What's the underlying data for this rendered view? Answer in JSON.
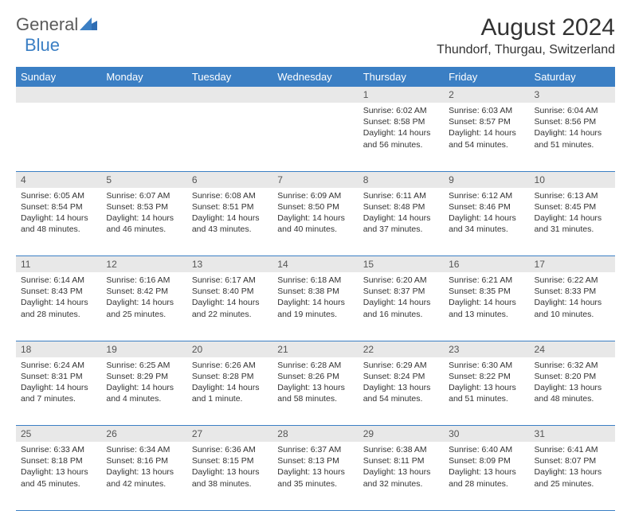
{
  "brand": {
    "general": "General",
    "blue": "Blue"
  },
  "title": "August 2024",
  "location": "Thundorf, Thurgau, Switzerland",
  "colors": {
    "header_bg": "#3b7fc4",
    "header_text": "#ffffff",
    "daynum_bg": "#e8e8e8",
    "border": "#3b7fc4",
    "text": "#333333",
    "logo_gray": "#5a5a5a",
    "logo_blue": "#3b7fc4"
  },
  "day_headers": [
    "Sunday",
    "Monday",
    "Tuesday",
    "Wednesday",
    "Thursday",
    "Friday",
    "Saturday"
  ],
  "weeks": [
    {
      "nums": [
        "",
        "",
        "",
        "",
        "1",
        "2",
        "3"
      ],
      "cells": [
        null,
        null,
        null,
        null,
        {
          "sunrise": "Sunrise: 6:02 AM",
          "sunset": "Sunset: 8:58 PM",
          "daylight": "Daylight: 14 hours and 56 minutes."
        },
        {
          "sunrise": "Sunrise: 6:03 AM",
          "sunset": "Sunset: 8:57 PM",
          "daylight": "Daylight: 14 hours and 54 minutes."
        },
        {
          "sunrise": "Sunrise: 6:04 AM",
          "sunset": "Sunset: 8:56 PM",
          "daylight": "Daylight: 14 hours and 51 minutes."
        }
      ]
    },
    {
      "nums": [
        "4",
        "5",
        "6",
        "7",
        "8",
        "9",
        "10"
      ],
      "cells": [
        {
          "sunrise": "Sunrise: 6:05 AM",
          "sunset": "Sunset: 8:54 PM",
          "daylight": "Daylight: 14 hours and 48 minutes."
        },
        {
          "sunrise": "Sunrise: 6:07 AM",
          "sunset": "Sunset: 8:53 PM",
          "daylight": "Daylight: 14 hours and 46 minutes."
        },
        {
          "sunrise": "Sunrise: 6:08 AM",
          "sunset": "Sunset: 8:51 PM",
          "daylight": "Daylight: 14 hours and 43 minutes."
        },
        {
          "sunrise": "Sunrise: 6:09 AM",
          "sunset": "Sunset: 8:50 PM",
          "daylight": "Daylight: 14 hours and 40 minutes."
        },
        {
          "sunrise": "Sunrise: 6:11 AM",
          "sunset": "Sunset: 8:48 PM",
          "daylight": "Daylight: 14 hours and 37 minutes."
        },
        {
          "sunrise": "Sunrise: 6:12 AM",
          "sunset": "Sunset: 8:46 PM",
          "daylight": "Daylight: 14 hours and 34 minutes."
        },
        {
          "sunrise": "Sunrise: 6:13 AM",
          "sunset": "Sunset: 8:45 PM",
          "daylight": "Daylight: 14 hours and 31 minutes."
        }
      ]
    },
    {
      "nums": [
        "11",
        "12",
        "13",
        "14",
        "15",
        "16",
        "17"
      ],
      "cells": [
        {
          "sunrise": "Sunrise: 6:14 AM",
          "sunset": "Sunset: 8:43 PM",
          "daylight": "Daylight: 14 hours and 28 minutes."
        },
        {
          "sunrise": "Sunrise: 6:16 AM",
          "sunset": "Sunset: 8:42 PM",
          "daylight": "Daylight: 14 hours and 25 minutes."
        },
        {
          "sunrise": "Sunrise: 6:17 AM",
          "sunset": "Sunset: 8:40 PM",
          "daylight": "Daylight: 14 hours and 22 minutes."
        },
        {
          "sunrise": "Sunrise: 6:18 AM",
          "sunset": "Sunset: 8:38 PM",
          "daylight": "Daylight: 14 hours and 19 minutes."
        },
        {
          "sunrise": "Sunrise: 6:20 AM",
          "sunset": "Sunset: 8:37 PM",
          "daylight": "Daylight: 14 hours and 16 minutes."
        },
        {
          "sunrise": "Sunrise: 6:21 AM",
          "sunset": "Sunset: 8:35 PM",
          "daylight": "Daylight: 14 hours and 13 minutes."
        },
        {
          "sunrise": "Sunrise: 6:22 AM",
          "sunset": "Sunset: 8:33 PM",
          "daylight": "Daylight: 14 hours and 10 minutes."
        }
      ]
    },
    {
      "nums": [
        "18",
        "19",
        "20",
        "21",
        "22",
        "23",
        "24"
      ],
      "cells": [
        {
          "sunrise": "Sunrise: 6:24 AM",
          "sunset": "Sunset: 8:31 PM",
          "daylight": "Daylight: 14 hours and 7 minutes."
        },
        {
          "sunrise": "Sunrise: 6:25 AM",
          "sunset": "Sunset: 8:29 PM",
          "daylight": "Daylight: 14 hours and 4 minutes."
        },
        {
          "sunrise": "Sunrise: 6:26 AM",
          "sunset": "Sunset: 8:28 PM",
          "daylight": "Daylight: 14 hours and 1 minute."
        },
        {
          "sunrise": "Sunrise: 6:28 AM",
          "sunset": "Sunset: 8:26 PM",
          "daylight": "Daylight: 13 hours and 58 minutes."
        },
        {
          "sunrise": "Sunrise: 6:29 AM",
          "sunset": "Sunset: 8:24 PM",
          "daylight": "Daylight: 13 hours and 54 minutes."
        },
        {
          "sunrise": "Sunrise: 6:30 AM",
          "sunset": "Sunset: 8:22 PM",
          "daylight": "Daylight: 13 hours and 51 minutes."
        },
        {
          "sunrise": "Sunrise: 6:32 AM",
          "sunset": "Sunset: 8:20 PM",
          "daylight": "Daylight: 13 hours and 48 minutes."
        }
      ]
    },
    {
      "nums": [
        "25",
        "26",
        "27",
        "28",
        "29",
        "30",
        "31"
      ],
      "cells": [
        {
          "sunrise": "Sunrise: 6:33 AM",
          "sunset": "Sunset: 8:18 PM",
          "daylight": "Daylight: 13 hours and 45 minutes."
        },
        {
          "sunrise": "Sunrise: 6:34 AM",
          "sunset": "Sunset: 8:16 PM",
          "daylight": "Daylight: 13 hours and 42 minutes."
        },
        {
          "sunrise": "Sunrise: 6:36 AM",
          "sunset": "Sunset: 8:15 PM",
          "daylight": "Daylight: 13 hours and 38 minutes."
        },
        {
          "sunrise": "Sunrise: 6:37 AM",
          "sunset": "Sunset: 8:13 PM",
          "daylight": "Daylight: 13 hours and 35 minutes."
        },
        {
          "sunrise": "Sunrise: 6:38 AM",
          "sunset": "Sunset: 8:11 PM",
          "daylight": "Daylight: 13 hours and 32 minutes."
        },
        {
          "sunrise": "Sunrise: 6:40 AM",
          "sunset": "Sunset: 8:09 PM",
          "daylight": "Daylight: 13 hours and 28 minutes."
        },
        {
          "sunrise": "Sunrise: 6:41 AM",
          "sunset": "Sunset: 8:07 PM",
          "daylight": "Daylight: 13 hours and 25 minutes."
        }
      ]
    }
  ]
}
